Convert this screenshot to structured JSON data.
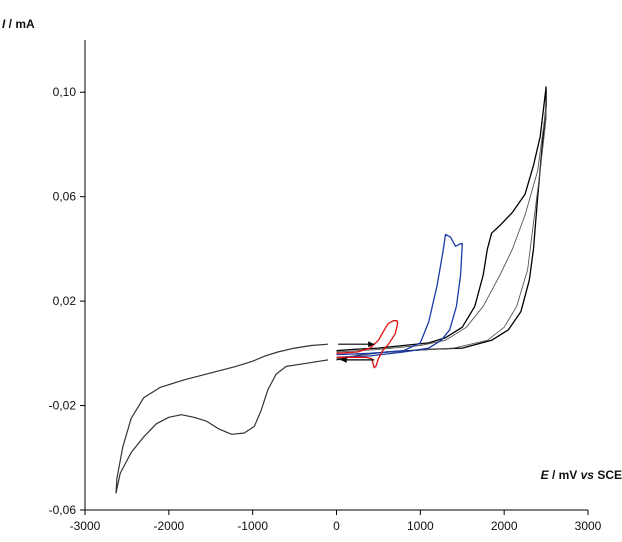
{
  "chart_data": {
    "type": "line",
    "title": "",
    "ylabel_symbol": "I",
    "ylabel_unit": " / mA",
    "xlabel_symbol": "E",
    "xlabel_unit": " / mV ",
    "xlabel_vs": "vs",
    "xlabel_ref": " SCE",
    "xlim": [
      -3000,
      3000
    ],
    "ylim": [
      -0.06,
      0.12
    ],
    "x_ticks": [
      -3000,
      -2000,
      -1000,
      0,
      1000,
      2000,
      3000
    ],
    "x_tick_labels": [
      "-3000",
      "-2000",
      "-1000",
      "0",
      "1000",
      "2000",
      "3000"
    ],
    "y_ticks": [
      -0.06,
      -0.02,
      0.02,
      0.06,
      0.1
    ],
    "y_tick_labels": [
      "-0,06",
      "-0,02",
      "0,02",
      "0,06",
      "0,10"
    ],
    "grid": false,
    "arrows": [
      {
        "direction": "right",
        "x": [
          20,
          450
        ],
        "y": [
          0.0035,
          0.0035
        ]
      },
      {
        "direction": "left",
        "x": [
          450,
          50
        ],
        "y": [
          -0.0025,
          -0.0025
        ]
      }
    ],
    "series": [
      {
        "color": "#333333",
        "width": 1.2,
        "points": [
          [
            -100,
            0.0035
          ],
          [
            -300,
            0.003
          ],
          [
            -500,
            0.002
          ],
          [
            -700,
            0.0005
          ],
          [
            -850,
            -0.001
          ],
          [
            -1000,
            -0.003
          ],
          [
            -1200,
            -0.005
          ],
          [
            -1500,
            -0.0075
          ],
          [
            -1800,
            -0.01
          ],
          [
            -2100,
            -0.013
          ],
          [
            -2300,
            -0.017
          ],
          [
            -2450,
            -0.025
          ],
          [
            -2550,
            -0.036
          ],
          [
            -2620,
            -0.048
          ],
          [
            -2630,
            -0.0535
          ],
          [
            -2580,
            -0.046
          ],
          [
            -2450,
            -0.038
          ],
          [
            -2300,
            -0.032
          ],
          [
            -2150,
            -0.027
          ],
          [
            -2000,
            -0.0245
          ],
          [
            -1850,
            -0.0235
          ],
          [
            -1700,
            -0.0245
          ],
          [
            -1550,
            -0.026
          ],
          [
            -1400,
            -0.029
          ],
          [
            -1250,
            -0.031
          ],
          [
            -1100,
            -0.0305
          ],
          [
            -980,
            -0.028
          ],
          [
            -900,
            -0.022
          ],
          [
            -820,
            -0.014
          ],
          [
            -720,
            -0.008
          ],
          [
            -600,
            -0.005
          ],
          [
            -400,
            -0.004
          ],
          [
            -200,
            -0.003
          ],
          [
            -100,
            -0.0025
          ]
        ]
      },
      {
        "color": "#000000",
        "width": 1.3,
        "points": [
          [
            0,
            0.001
          ],
          [
            200,
            0.0015
          ],
          [
            500,
            0.002
          ],
          [
            800,
            0.003
          ],
          [
            1100,
            0.004
          ],
          [
            1300,
            0.006
          ],
          [
            1500,
            0.01
          ],
          [
            1650,
            0.018
          ],
          [
            1750,
            0.03
          ],
          [
            1800,
            0.04
          ],
          [
            1850,
            0.046
          ],
          [
            1950,
            0.049
          ],
          [
            2100,
            0.054
          ],
          [
            2250,
            0.061
          ],
          [
            2350,
            0.072
          ],
          [
            2430,
            0.083
          ],
          [
            2500,
            0.102
          ],
          [
            2500,
            0.095
          ],
          [
            2450,
            0.078
          ],
          [
            2400,
            0.06
          ],
          [
            2350,
            0.04
          ],
          [
            2300,
            0.028
          ],
          [
            2200,
            0.016
          ],
          [
            2050,
            0.009
          ],
          [
            1850,
            0.005
          ],
          [
            1500,
            0.002
          ],
          [
            1100,
            0.0015
          ],
          [
            600,
            0.0005
          ],
          [
            300,
            -0.0005
          ],
          [
            0,
            -0.0025
          ]
        ]
      },
      {
        "color": "#555555",
        "width": 0.9,
        "points": [
          [
            0,
            0.0005
          ],
          [
            500,
            0.0015
          ],
          [
            1000,
            0.003
          ],
          [
            1300,
            0.005
          ],
          [
            1550,
            0.01
          ],
          [
            1750,
            0.018
          ],
          [
            1950,
            0.03
          ],
          [
            2100,
            0.04
          ],
          [
            2250,
            0.053
          ],
          [
            2400,
            0.07
          ],
          [
            2500,
            0.094
          ],
          [
            2500,
            0.09
          ],
          [
            2430,
            0.07
          ],
          [
            2350,
            0.05
          ],
          [
            2280,
            0.032
          ],
          [
            2150,
            0.018
          ],
          [
            2000,
            0.01
          ],
          [
            1800,
            0.005
          ],
          [
            1400,
            0.002
          ],
          [
            900,
            0.001
          ],
          [
            400,
            0.0
          ],
          [
            0,
            -0.002
          ]
        ]
      },
      {
        "color": "#1a3aa8",
        "width": 1.3,
        "points": [
          [
            0,
            -0.0005
          ],
          [
            400,
            0.0
          ],
          [
            800,
            0.001
          ],
          [
            1000,
            0.004
          ],
          [
            1100,
            0.012
          ],
          [
            1200,
            0.026
          ],
          [
            1270,
            0.039
          ],
          [
            1300,
            0.0455
          ],
          [
            1360,
            0.0445
          ],
          [
            1420,
            0.041
          ],
          [
            1480,
            0.042
          ],
          [
            1500,
            0.042
          ],
          [
            1480,
            0.03
          ],
          [
            1430,
            0.018
          ],
          [
            1350,
            0.009
          ],
          [
            1250,
            0.005
          ],
          [
            1100,
            0.002
          ],
          [
            800,
            0.0005
          ],
          [
            400,
            -0.001
          ],
          [
            0,
            -0.0015
          ]
        ]
      },
      {
        "color": "#e01010",
        "width": 1.3,
        "points": [
          [
            0,
            0.0
          ],
          [
            250,
            0.0005
          ],
          [
            400,
            0.002
          ],
          [
            500,
            0.005
          ],
          [
            580,
            0.0095
          ],
          [
            620,
            0.0115
          ],
          [
            680,
            0.0125
          ],
          [
            720,
            0.0125
          ],
          [
            730,
            0.0115
          ],
          [
            700,
            0.0075
          ],
          [
            620,
            0.0035
          ],
          [
            550,
            0.001
          ],
          [
            500,
            -0.002
          ],
          [
            470,
            -0.005
          ],
          [
            450,
            -0.0055
          ],
          [
            420,
            -0.002
          ],
          [
            350,
            -0.0015
          ],
          [
            200,
            -0.0015
          ],
          [
            0,
            -0.0015
          ]
        ]
      }
    ]
  }
}
